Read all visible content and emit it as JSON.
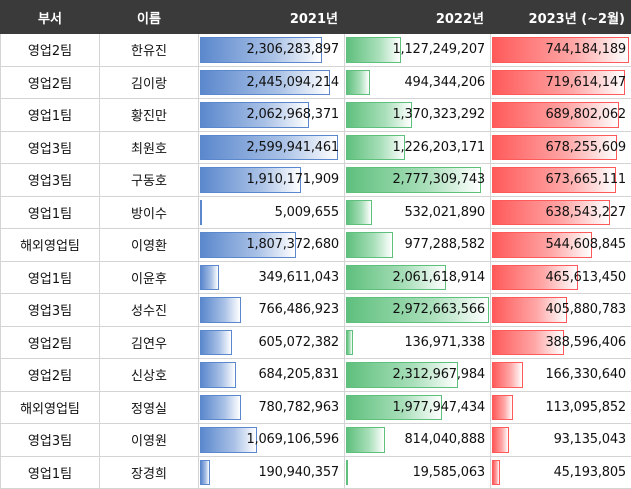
{
  "headers": {
    "dept": "부서",
    "name": "이름",
    "y2021": "2021년",
    "y2022": "2022년",
    "y2023": "2023년 (~2월)"
  },
  "colors": {
    "header_bg": "#3a3a3a",
    "bar_2021": "#5b88cd",
    "bar_2022": "#5fc07d",
    "bar_2023": "#ff5a5a"
  },
  "scale_max": {
    "y2021": 2700000000,
    "y2022": 2950000000,
    "y2023": 748000000
  },
  "rows": [
    {
      "dept": "영업2팀",
      "name": "한유진",
      "y2021": "2,306,283,897",
      "y2022": "1,127,249,207",
      "y2023": "744,184,189"
    },
    {
      "dept": "영업2팀",
      "name": "김이랑",
      "y2021": "2,445,094,214",
      "y2022": "494,344,206",
      "y2023": "719,614,147"
    },
    {
      "dept": "영업1팀",
      "name": "황진만",
      "y2021": "2,062,968,371",
      "y2022": "1,370,323,292",
      "y2023": "689,802,062"
    },
    {
      "dept": "영업3팀",
      "name": "최원호",
      "y2021": "2,599,941,461",
      "y2022": "1,226,203,171",
      "y2023": "678,255,609"
    },
    {
      "dept": "영업3팀",
      "name": "구동호",
      "y2021": "1,910,171,909",
      "y2022": "2,777,309,743",
      "y2023": "673,665,111"
    },
    {
      "dept": "영업1팀",
      "name": "방이수",
      "y2021": "5,009,655",
      "y2022": "532,021,890",
      "y2023": "638,543,227"
    },
    {
      "dept": "해외영업팀",
      "name": "이영환",
      "y2021": "1,807,372,680",
      "y2022": "977,288,582",
      "y2023": "544,608,845"
    },
    {
      "dept": "영업1팀",
      "name": "이윤후",
      "y2021": "349,611,043",
      "y2022": "2,061,618,914",
      "y2023": "465,613,450"
    },
    {
      "dept": "영업3팀",
      "name": "성수진",
      "y2021": "766,486,923",
      "y2022": "2,972,663,566",
      "y2023": "405,880,783"
    },
    {
      "dept": "영업2팀",
      "name": "김연우",
      "y2021": "605,072,382",
      "y2022": "136,971,338",
      "y2023": "388,596,406"
    },
    {
      "dept": "영업2팀",
      "name": "신상호",
      "y2021": "684,205,831",
      "y2022": "2,312,967,984",
      "y2023": "166,330,640"
    },
    {
      "dept": "해외영업팀",
      "name": "정영실",
      "y2021": "780,782,963",
      "y2022": "1,977,947,434",
      "y2023": "113,095,852"
    },
    {
      "dept": "영업3팀",
      "name": "이영원",
      "y2021": "1,069,106,596",
      "y2022": "814,040,888",
      "y2023": "93,135,043"
    },
    {
      "dept": "영업1팀",
      "name": "장경희",
      "y2021": "190,940,357",
      "y2022": "19,585,063",
      "y2023": "45,193,805"
    }
  ]
}
